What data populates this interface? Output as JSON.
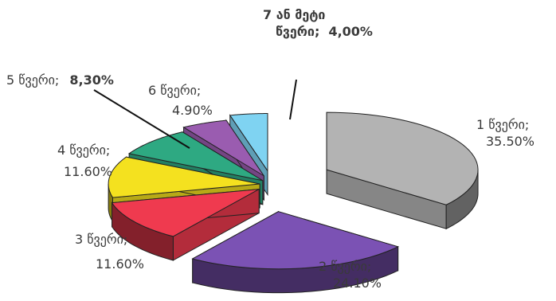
{
  "chart_data": {
    "type": "pie",
    "style": "3d-exploded",
    "slices": [
      {
        "label": "1 წვერი;",
        "value": 35.5,
        "display": "35.50%",
        "color": "#b3b3b3"
      },
      {
        "label": "2 წვერი;",
        "value": 24.1,
        "display": "24.10%",
        "color": "#7b52b4"
      },
      {
        "label": "3 წვერი;",
        "value": 11.6,
        "display": "11.60%",
        "color": "#ef3a4f"
      },
      {
        "label": "4 წვერი;",
        "value": 11.6,
        "display": "11.60%",
        "color": "#f4e11f"
      },
      {
        "label": "5 წვერი;",
        "value": 8.3,
        "display": "8,30%",
        "color": "#2ea982"
      },
      {
        "label": "6 წვერი;",
        "value": 4.9,
        "display": "4.90%",
        "color": "#9a5cb0"
      },
      {
        "label": "7 ან მეტი წვერი;",
        "label_line1": "7 ან მეტი",
        "label_line2": "წვერი;",
        "value": 4.0,
        "display": "4,00%",
        "color": "#7fd3f2"
      }
    ]
  }
}
